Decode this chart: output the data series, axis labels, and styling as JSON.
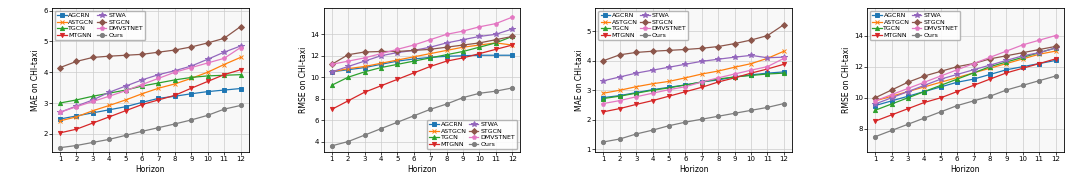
{
  "horizon": [
    1,
    2,
    3,
    4,
    5,
    6,
    7,
    8,
    9,
    10,
    11,
    12
  ],
  "models": [
    "AGCRN",
    "ASTGCN",
    "TGCN",
    "MTGNN",
    "STWA",
    "STGCN",
    "DMVSTNET",
    "Ours"
  ],
  "colors": [
    "#1f77b4",
    "#ff7f0e",
    "#2ca02c",
    "#d62728",
    "#9467bd",
    "#8c564b",
    "#e377c2",
    "#7f7f7f"
  ],
  "markers": [
    "s",
    "x",
    "^",
    "v",
    "*",
    "D",
    "p",
    "o"
  ],
  "markersize": 3.0,
  "linewidth": 1.0,
  "plot1_MAE_CHI": {
    "ylabel": "MAE on CHI-taxi",
    "ylim": [
      1.4,
      6.1
    ],
    "yticks": [
      2,
      3,
      4,
      5,
      6
    ],
    "data": {
      "AGCRN": [
        2.48,
        2.58,
        2.68,
        2.78,
        2.88,
        3.02,
        3.15,
        3.22,
        3.3,
        3.37,
        3.42,
        3.47
      ],
      "ASTGCN": [
        2.42,
        2.55,
        2.75,
        2.92,
        3.1,
        3.3,
        3.48,
        3.62,
        3.8,
        4.0,
        4.25,
        4.48
      ],
      "TGCN": [
        3.0,
        3.1,
        3.22,
        3.32,
        3.42,
        3.55,
        3.65,
        3.75,
        3.83,
        3.88,
        3.9,
        3.92
      ],
      "MTGNN": [
        2.03,
        2.15,
        2.35,
        2.55,
        2.75,
        2.95,
        3.1,
        3.25,
        3.48,
        3.7,
        3.92,
        4.08
      ],
      "STWA": [
        2.7,
        2.9,
        3.1,
        3.35,
        3.55,
        3.75,
        3.92,
        4.05,
        4.2,
        4.42,
        4.65,
        4.85
      ],
      "STGCN": [
        4.15,
        4.35,
        4.48,
        4.52,
        4.55,
        4.58,
        4.65,
        4.72,
        4.82,
        4.95,
        5.1,
        5.48
      ],
      "DMVSTNET": [
        2.7,
        2.88,
        3.05,
        3.22,
        3.4,
        3.6,
        3.8,
        4.0,
        4.15,
        4.3,
        4.45,
        4.8
      ],
      "Ours": [
        1.55,
        1.62,
        1.72,
        1.82,
        1.95,
        2.08,
        2.2,
        2.32,
        2.45,
        2.6,
        2.8,
        2.92
      ]
    },
    "legend_loc": "upper left",
    "legend_bbox": null
  },
  "plot2_RMSE_CHI": {
    "ylabel": "RMSE on CHI-taxi",
    "ylim": [
      3.0,
      16.5
    ],
    "yticks": [
      4,
      6,
      8,
      10,
      12,
      14
    ],
    "data": {
      "AGCRN": [
        10.5,
        10.7,
        10.9,
        11.2,
        11.5,
        11.7,
        11.85,
        11.95,
        12.0,
        12.05,
        12.05,
        12.05
      ],
      "ASTGCN": [
        10.5,
        10.8,
        11.0,
        11.3,
        11.6,
        11.9,
        12.2,
        12.5,
        12.8,
        13.0,
        13.2,
        13.0
      ],
      "TGCN": [
        9.25,
        10.0,
        10.5,
        10.9,
        11.2,
        11.5,
        11.8,
        12.1,
        12.4,
        12.8,
        13.2,
        13.8
      ],
      "MTGNN": [
        7.0,
        7.8,
        8.6,
        9.2,
        9.8,
        10.4,
        11.0,
        11.5,
        11.8,
        12.2,
        12.6,
        13.0
      ],
      "STWA": [
        10.5,
        11.0,
        11.5,
        12.0,
        12.3,
        12.5,
        12.8,
        13.2,
        13.5,
        13.8,
        14.0,
        14.5
      ],
      "STGCN": [
        11.2,
        12.1,
        12.35,
        12.4,
        12.4,
        12.5,
        12.6,
        12.8,
        13.0,
        13.2,
        13.5,
        13.8
      ],
      "DMVSTNET": [
        11.2,
        11.5,
        11.8,
        12.2,
        12.6,
        13.0,
        13.5,
        14.0,
        14.3,
        14.7,
        15.0,
        15.6
      ],
      "Ours": [
        3.6,
        4.0,
        4.6,
        5.2,
        5.8,
        6.4,
        7.0,
        7.5,
        8.1,
        8.5,
        8.7,
        9.0
      ]
    },
    "legend_loc": "lower right",
    "legend_bbox": null
  },
  "plot3_MAE_CHI2": {
    "ylabel": "MAE on CHI-taxi",
    "ylim": [
      0.9,
      5.8
    ],
    "yticks": [
      1,
      2,
      3,
      4,
      5
    ],
    "data": {
      "AGCRN": [
        2.75,
        2.82,
        2.92,
        3.02,
        3.1,
        3.18,
        3.28,
        3.35,
        3.45,
        3.52,
        3.58,
        3.62
      ],
      "ASTGCN": [
        2.9,
        3.0,
        3.12,
        3.22,
        3.3,
        3.42,
        3.55,
        3.65,
        3.78,
        3.9,
        4.08,
        4.32
      ],
      "TGCN": [
        2.72,
        2.8,
        2.9,
        3.0,
        3.08,
        3.18,
        3.28,
        3.38,
        3.45,
        3.5,
        3.55,
        3.58
      ],
      "MTGNN": [
        2.27,
        2.38,
        2.52,
        2.65,
        2.8,
        2.95,
        3.1,
        3.28,
        3.42,
        3.58,
        3.72,
        3.88
      ],
      "STWA": [
        3.32,
        3.45,
        3.58,
        3.68,
        3.78,
        3.88,
        3.98,
        4.05,
        4.12,
        4.18,
        4.1,
        4.12
      ],
      "STGCN": [
        4.0,
        4.2,
        4.28,
        4.32,
        4.35,
        4.38,
        4.42,
        4.48,
        4.58,
        4.7,
        4.85,
        5.22
      ],
      "DMVSTNET": [
        2.55,
        2.65,
        2.78,
        2.9,
        3.02,
        3.12,
        3.28,
        3.42,
        3.55,
        3.68,
        3.8,
        4.08
      ],
      "Ours": [
        1.25,
        1.35,
        1.52,
        1.65,
        1.8,
        1.92,
        2.02,
        2.12,
        2.22,
        2.32,
        2.42,
        2.55
      ]
    },
    "legend_loc": "upper left",
    "legend_bbox": null
  },
  "plot4_RMSE_CHI2": {
    "ylabel": "RMSE on CHI-taxi",
    "ylim": [
      6.5,
      15.8
    ],
    "yticks": [
      8,
      10,
      12,
      14
    ],
    "data": {
      "AGCRN": [
        9.5,
        9.8,
        10.1,
        10.4,
        10.7,
        11.0,
        11.2,
        11.5,
        11.8,
        12.0,
        12.2,
        12.4
      ],
      "ASTGCN": [
        9.8,
        10.1,
        10.4,
        10.7,
        11.0,
        11.3,
        11.6,
        11.9,
        12.2,
        12.5,
        12.8,
        13.0
      ],
      "TGCN": [
        9.2,
        9.6,
        10.0,
        10.4,
        10.8,
        11.2,
        11.6,
        12.0,
        12.3,
        12.6,
        12.9,
        13.2
      ],
      "MTGNN": [
        8.5,
        8.9,
        9.3,
        9.7,
        10.0,
        10.4,
        10.8,
        11.2,
        11.6,
        11.9,
        12.2,
        12.5
      ],
      "STWA": [
        9.6,
        10.0,
        10.4,
        10.8,
        11.2,
        11.5,
        11.8,
        12.1,
        12.4,
        12.7,
        12.9,
        13.2
      ],
      "STGCN": [
        10.0,
        10.5,
        11.0,
        11.4,
        11.7,
        12.0,
        12.2,
        12.5,
        12.7,
        12.9,
        13.1,
        13.3
      ],
      "DMVSTNET": [
        9.8,
        10.2,
        10.6,
        11.0,
        11.4,
        11.8,
        12.2,
        12.6,
        13.0,
        13.4,
        13.7,
        14.0
      ],
      "Ours": [
        7.5,
        7.9,
        8.3,
        8.7,
        9.1,
        9.5,
        9.8,
        10.1,
        10.5,
        10.8,
        11.1,
        11.4
      ]
    },
    "legend_loc": "upper left",
    "legend_bbox": null
  }
}
